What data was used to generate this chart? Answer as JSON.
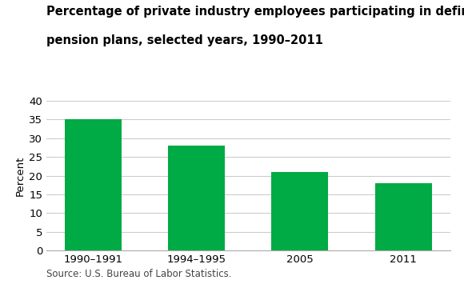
{
  "categories": [
    "1990–1991",
    "1994–1995",
    "2005",
    "2011"
  ],
  "values": [
    35,
    28,
    21,
    18
  ],
  "bar_color": "#00aa44",
  "title_line1": "Percentage of private industry employees participating in defined benefit",
  "title_line2": "pension plans, selected years, 1990–2011",
  "ylabel": "Percent",
  "ylim": [
    0,
    40
  ],
  "yticks": [
    0,
    5,
    10,
    15,
    20,
    25,
    30,
    35,
    40
  ],
  "source": "Source: U.S. Bureau of Labor Statistics.",
  "title_fontsize": 10.5,
  "axis_fontsize": 9.5,
  "source_fontsize": 8.5,
  "background_color": "#ffffff",
  "grid_color": "#cccccc"
}
